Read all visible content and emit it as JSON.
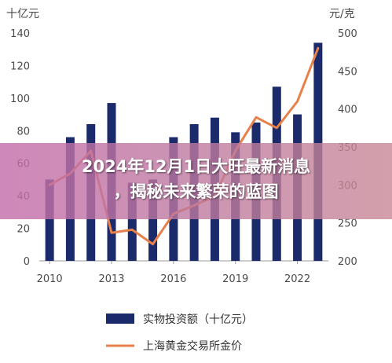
{
  "overlay": {
    "title_line1": "2024年12月1日大旺最新消息",
    "title_line2": "，揭秘未来繁荣的蓝图"
  },
  "chart_data": {
    "type": "bar",
    "left_unit": "十亿元",
    "right_unit": "元/克",
    "x_tick_labels": [
      "2010",
      "2013",
      "2016",
      "2019",
      "2022"
    ],
    "categories": [
      "2010",
      "2011",
      "2012",
      "2013",
      "2014",
      "2015",
      "2016",
      "2017",
      "2018",
      "2019",
      "2020",
      "2021",
      "2022",
      "2023"
    ],
    "left_axis": {
      "ylim": [
        0,
        140
      ],
      "ticks": [
        0,
        20,
        40,
        60,
        80,
        100,
        120,
        140
      ]
    },
    "right_axis": {
      "ylim": [
        200,
        500
      ],
      "ticks": [
        200,
        250,
        300,
        350,
        400,
        450,
        500
      ]
    },
    "series": [
      {
        "name": "实物投资额（十亿元）",
        "type": "bar",
        "axis": "left",
        "color": "#1b2a6b",
        "values": [
          50,
          76,
          84,
          97,
          48,
          50,
          76,
          84,
          88,
          79,
          85,
          107,
          90,
          134
        ]
      },
      {
        "name": "上海黄金交易所金价",
        "type": "line",
        "axis": "right",
        "color": "#e8804a",
        "values": [
          300,
          315,
          345,
          237,
          241,
          222,
          262,
          273,
          285,
          345,
          389,
          375,
          410,
          480
        ]
      }
    ],
    "legend_position": "bottom",
    "grid": false
  }
}
